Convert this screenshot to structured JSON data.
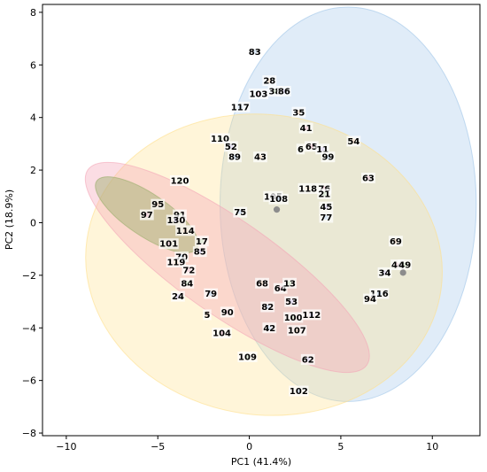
{
  "chart_data": {
    "type": "scatter",
    "title": "",
    "xlabel": "PC1 (41.4%)",
    "ylabel": "PC2 (18.9%)",
    "xlim": [
      -11.3,
      12.6
    ],
    "ylim": [
      -8.1,
      8.3
    ],
    "xticks": [
      -10,
      -5,
      0,
      5,
      10
    ],
    "yticks": [
      -8,
      -6,
      -4,
      -2,
      0,
      2,
      4,
      6,
      8
    ],
    "grid": false,
    "ellipses": [
      {
        "cx": 5.4,
        "cy": 0.7,
        "rx": 7.0,
        "ry": 7.5,
        "angle": 0,
        "color": "#9ec5e8",
        "opacity": 0.32
      },
      {
        "cx": 0.8,
        "cy": -1.6,
        "rx": 8.2,
        "ry": 6.8,
        "angle": 82,
        "color": "#ffe08a",
        "opacity": 0.32
      },
      {
        "cx": -1.2,
        "cy": -1.7,
        "rx": 9.3,
        "ry": 1.8,
        "angle": -35,
        "color": "#f4a6b8",
        "opacity": 0.38
      },
      {
        "cx": -5.6,
        "cy": 0.3,
        "rx": 3.3,
        "ry": 0.8,
        "angle": -34,
        "color": "#9aad6a",
        "opacity": 0.45
      }
    ],
    "centroids": [
      {
        "x": 1.5,
        "y": 0.5
      },
      {
        "x": 8.4,
        "y": -1.9
      }
    ],
    "points": [
      {
        "label": "83",
        "x": 0.3,
        "y": 6.5
      },
      {
        "label": "28",
        "x": 1.1,
        "y": 5.4
      },
      {
        "label": "103",
        "x": 0.5,
        "y": 4.9
      },
      {
        "label": "38",
        "x": 1.4,
        "y": 5.0
      },
      {
        "label": "86",
        "x": 1.9,
        "y": 5.0
      },
      {
        "label": "117",
        "x": -0.5,
        "y": 4.4
      },
      {
        "label": "35",
        "x": 2.7,
        "y": 4.2
      },
      {
        "label": "41",
        "x": 3.1,
        "y": 3.6
      },
      {
        "label": "110",
        "x": -1.6,
        "y": 3.2
      },
      {
        "label": "52",
        "x": -1.0,
        "y": 2.9
      },
      {
        "label": "89",
        "x": -0.8,
        "y": 2.5
      },
      {
        "label": "43",
        "x": 0.6,
        "y": 2.5
      },
      {
        "label": "65",
        "x": 3.4,
        "y": 2.9
      },
      {
        "label": "6",
        "x": 2.8,
        "y": 2.8
      },
      {
        "label": "11",
        "x": 4.0,
        "y": 2.8
      },
      {
        "label": "99",
        "x": 4.3,
        "y": 2.5
      },
      {
        "label": "54",
        "x": 5.7,
        "y": 3.1
      },
      {
        "label": "63",
        "x": 6.5,
        "y": 1.7
      },
      {
        "label": "120",
        "x": -3.8,
        "y": 1.6
      },
      {
        "label": "105",
        "x": 1.3,
        "y": 1.0
      },
      {
        "label": "108",
        "x": 1.6,
        "y": 0.9
      },
      {
        "label": "118",
        "x": 3.2,
        "y": 1.3
      },
      {
        "label": "76",
        "x": 4.1,
        "y": 1.3
      },
      {
        "label": "21",
        "x": 4.1,
        "y": 1.1
      },
      {
        "label": "45",
        "x": 4.2,
        "y": 0.6
      },
      {
        "label": "77",
        "x": 4.2,
        "y": 0.2
      },
      {
        "label": "95",
        "x": -5.0,
        "y": 0.7
      },
      {
        "label": "97",
        "x": -5.6,
        "y": 0.3
      },
      {
        "label": "91",
        "x": -3.8,
        "y": 0.3
      },
      {
        "label": "130",
        "x": -4.0,
        "y": 0.1
      },
      {
        "label": "75",
        "x": -0.5,
        "y": 0.4
      },
      {
        "label": "114",
        "x": -3.5,
        "y": -0.3
      },
      {
        "label": "101",
        "x": -4.4,
        "y": -0.8
      },
      {
        "label": "17",
        "x": -2.6,
        "y": -0.7
      },
      {
        "label": "85",
        "x": -2.7,
        "y": -1.1
      },
      {
        "label": "70",
        "x": -3.7,
        "y": -1.3
      },
      {
        "label": "119",
        "x": -4.0,
        "y": -1.5
      },
      {
        "label": "72",
        "x": -3.3,
        "y": -1.8
      },
      {
        "label": "84",
        "x": -3.4,
        "y": -2.3
      },
      {
        "label": "24",
        "x": -3.9,
        "y": -2.8
      },
      {
        "label": "79",
        "x": -2.1,
        "y": -2.7
      },
      {
        "label": "68",
        "x": 0.7,
        "y": -2.3
      },
      {
        "label": "64",
        "x": 1.7,
        "y": -2.5
      },
      {
        "label": "13",
        "x": 2.2,
        "y": -2.3
      },
      {
        "label": "53",
        "x": 2.3,
        "y": -3.0
      },
      {
        "label": "82",
        "x": 1.0,
        "y": -3.2
      },
      {
        "label": "5",
        "x": -2.3,
        "y": -3.5
      },
      {
        "label": "90",
        "x": -1.2,
        "y": -3.4
      },
      {
        "label": "100",
        "x": 2.4,
        "y": -3.6
      },
      {
        "label": "112",
        "x": 3.4,
        "y": -3.5
      },
      {
        "label": "42",
        "x": 1.1,
        "y": -4.0
      },
      {
        "label": "107",
        "x": 2.6,
        "y": -4.1
      },
      {
        "label": "104",
        "x": -1.5,
        "y": -4.2
      },
      {
        "label": "109",
        "x": -0.1,
        "y": -5.1
      },
      {
        "label": "62",
        "x": 3.2,
        "y": -5.2
      },
      {
        "label": "102",
        "x": 2.7,
        "y": -6.4
      },
      {
        "label": "69",
        "x": 8.0,
        "y": -0.7
      },
      {
        "label": "44",
        "x": 8.1,
        "y": -1.6
      },
      {
        "label": "49",
        "x": 8.5,
        "y": -1.6
      },
      {
        "label": "34",
        "x": 7.4,
        "y": -1.9
      },
      {
        "label": "116",
        "x": 7.1,
        "y": -2.7
      },
      {
        "label": "94",
        "x": 6.6,
        "y": -2.9
      }
    ]
  }
}
